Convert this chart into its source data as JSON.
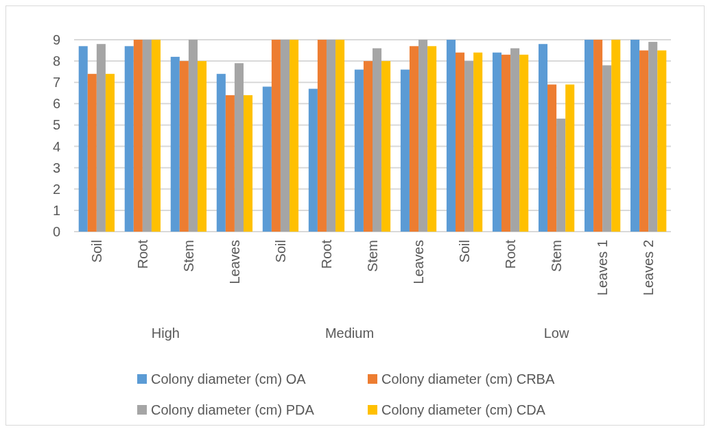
{
  "chart_data": {
    "type": "bar",
    "categories": [
      "Soil",
      "Root",
      "Stem",
      "Leaves",
      "Soil",
      "Root",
      "Stem",
      "Leaves",
      "Soil",
      "Root",
      "Stem",
      "Leaves 1",
      "Leaves 2"
    ],
    "series": [
      {
        "name": "Colony diameter (cm) OA",
        "color": "#5b9bd5",
        "values": [
          8.7,
          8.7,
          8.2,
          7.4,
          6.8,
          6.7,
          7.6,
          7.6,
          9,
          8.4,
          8.8,
          9,
          9
        ]
      },
      {
        "name": "Colony diameter (cm) CRBA",
        "color": "#ed7d31",
        "values": [
          7.4,
          9,
          8.0,
          6.4,
          9,
          9,
          8.0,
          8.7,
          8.4,
          8.3,
          6.9,
          9,
          8.5
        ]
      },
      {
        "name": "Colony diameter (cm) PDA",
        "color": "#a5a5a5",
        "values": [
          8.8,
          9,
          9,
          7.9,
          9,
          9,
          8.6,
          9,
          8.0,
          8.6,
          5.3,
          7.8,
          8.9
        ]
      },
      {
        "name": "Colony diameter (cm) CDA",
        "color": "#ffc000",
        "values": [
          7.4,
          9,
          8.0,
          6.4,
          9,
          9,
          8.0,
          8.7,
          8.4,
          8.3,
          6.9,
          9,
          8.5
        ]
      }
    ],
    "annotations": [
      "High",
      "Medium",
      "Low"
    ],
    "ylim": [
      0,
      9
    ],
    "yticks": [
      0,
      1,
      2,
      3,
      4,
      5,
      6,
      7,
      8,
      9
    ],
    "grid": "y",
    "legend": "bottom"
  }
}
